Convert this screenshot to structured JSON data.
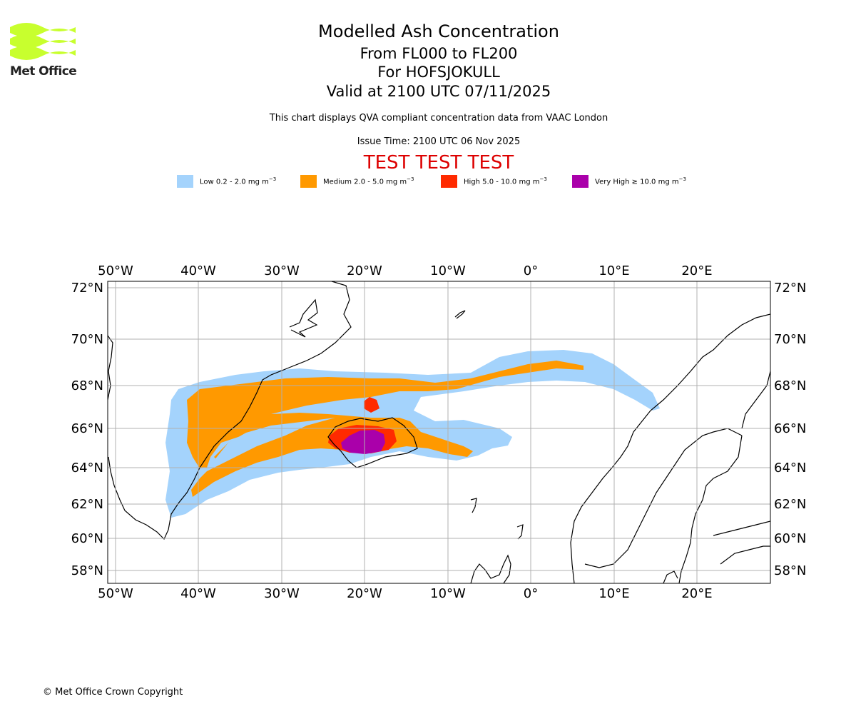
{
  "logo": {
    "text": "Met Office",
    "color": "#c8ff2e"
  },
  "header": {
    "title": "Modelled Ash Concentration",
    "subtitle_levels": "From FL000 to FL200",
    "subtitle_volcano": "For HOFSJOKULL",
    "subtitle_valid": "Valid at 2100 UTC 07/11/2025",
    "description": "This chart displays QVA compliant concentration data from VAAC London",
    "issue_time": "Issue Time: 2100 UTC 06 Nov 2025",
    "test_banner": "TEST TEST TEST",
    "test_color": "#dd0000"
  },
  "legend": [
    {
      "name": "Low",
      "text": "Low 0.2 - 2.0 mg m",
      "exp": "−3",
      "color": "#a4d3fc"
    },
    {
      "name": "Medium",
      "text": "Medium 2.0 - 5.0 mg m",
      "exp": "−3",
      "color": "#ff9900"
    },
    {
      "name": "High",
      "text": "High 5.0 - 10.0 mg m",
      "exp": "−3",
      "color": "#ff2a00"
    },
    {
      "name": "Very High",
      "text": "Very High  ≥  10.0 mg m",
      "exp": "−3",
      "color": "#aa00aa"
    }
  ],
  "map": {
    "lon_labels": [
      "50°W",
      "40°W",
      "30°W",
      "20°W",
      "10°W",
      "0°",
      "10°E",
      "20°E"
    ],
    "lat_labels": [
      "72°N",
      "70°N",
      "68°N",
      "66°N",
      "64°N",
      "62°N",
      "60°N",
      "58°N"
    ]
  },
  "footer": {
    "copyright": "© Met Office Crown Copyright"
  }
}
